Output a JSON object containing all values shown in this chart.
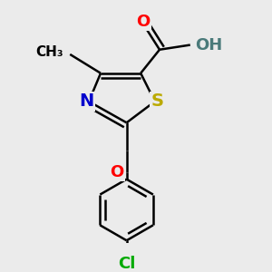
{
  "background_color": "#ebebeb",
  "atom_colors": {
    "C": "#000000",
    "N": "#0000cc",
    "S": "#bbaa00",
    "O": "#ff0000",
    "Cl": "#00aa00",
    "H": "#4a7a7a"
  },
  "bond_color": "#000000",
  "bond_width": 1.8,
  "font_size_atoms": 14
}
